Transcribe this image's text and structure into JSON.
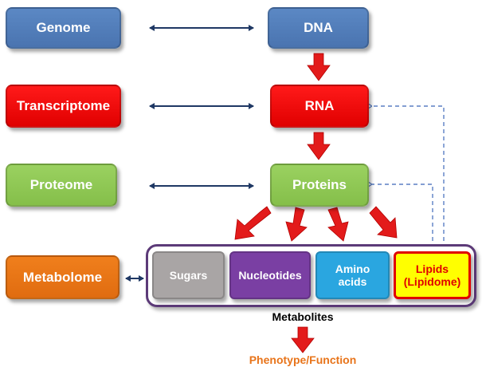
{
  "omics": {
    "genome": "Genome",
    "transcriptome": "Transcriptome",
    "proteome": "Proteome",
    "metabolome": "Metabolome"
  },
  "molecules": {
    "dna": "DNA",
    "rna": "RNA",
    "proteins": "Proteins"
  },
  "metabolites": {
    "sugars": "Sugars",
    "nucleotides": "Nucleotides",
    "amino_acids_line1": "Amino",
    "amino_acids_line2": "acids",
    "lipids_line1": "Lipids",
    "lipids_line2": "(Lipidome)",
    "group_label": "Metabolites"
  },
  "outcome": "Phenotype/Function",
  "colors": {
    "blue": "#4f7dbd",
    "red": "#ff0000",
    "green": "#92c85a",
    "orange": "#e8741a",
    "arrow_red": "#e31b1b",
    "arrow_navy": "#1f3864",
    "dashed": "#5b7fc4",
    "outcome_text": "#e8741a"
  }
}
